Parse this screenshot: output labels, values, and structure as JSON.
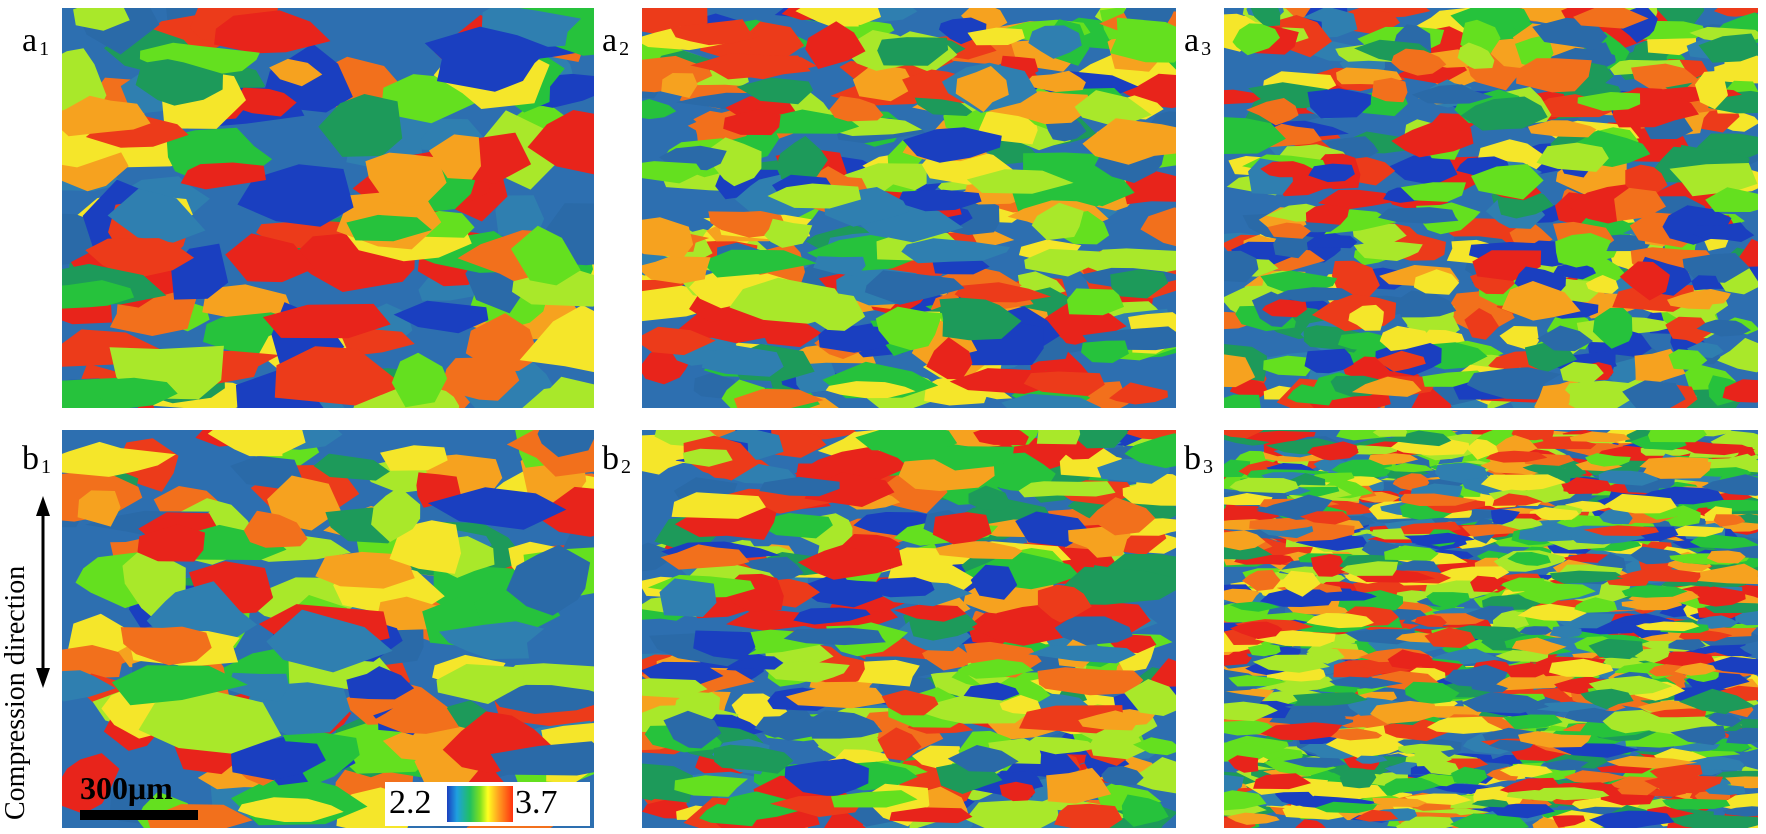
{
  "panels": [
    {
      "id": "a1",
      "label": "a",
      "sub": "1"
    },
    {
      "id": "a2",
      "label": "a",
      "sub": "2"
    },
    {
      "id": "a3",
      "label": "a",
      "sub": "3"
    },
    {
      "id": "b1",
      "label": "b",
      "sub": "1"
    },
    {
      "id": "b2",
      "label": "b",
      "sub": "2"
    },
    {
      "id": "b3",
      "label": "b",
      "sub": "3"
    }
  ],
  "compression_label": "Compression direction",
  "scale_bar": {
    "label": "300μm"
  },
  "colorbar": {
    "min": "2.2",
    "max": "3.7"
  },
  "colors": {
    "palette": [
      "#1a3fc0",
      "#2a6aa8",
      "#2f7fb0",
      "#1d9a5a",
      "#26c23c",
      "#64e01f",
      "#a9e82a",
      "#f5e62a",
      "#f6a21f",
      "#f2701c",
      "#ec3b1a",
      "#e8241b"
    ],
    "background": "#ffffff"
  }
}
